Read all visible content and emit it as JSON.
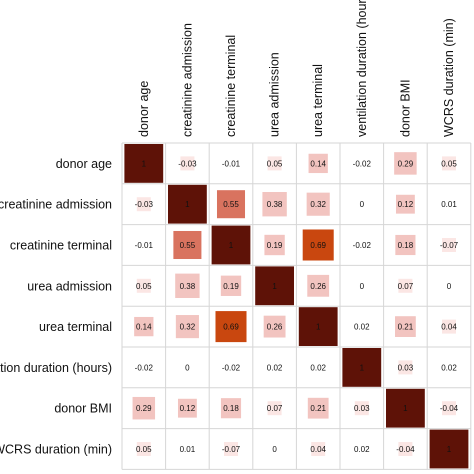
{
  "chart_data": {
    "type": "heatmap",
    "variables": [
      "donor age",
      "creatinine admission",
      "creatinine terminal",
      "urea admission",
      "urea terminal",
      "ventilation duration (hours)",
      "donor BMI",
      "WCRS duration (min)"
    ],
    "matrix": [
      [
        1,
        -0.03,
        -0.01,
        0.05,
        0.14,
        -0.02,
        0.29,
        0.05
      ],
      [
        -0.03,
        1,
        0.55,
        0.38,
        0.32,
        0,
        0.12,
        0.01
      ],
      [
        -0.01,
        0.55,
        1,
        0.19,
        0.69,
        -0.02,
        0.18,
        -0.07
      ],
      [
        0.05,
        0.38,
        0.19,
        1,
        0.26,
        0,
        0.07,
        0
      ],
      [
        0.14,
        0.32,
        0.69,
        0.26,
        1,
        0.02,
        0.21,
        0.04
      ],
      [
        -0.02,
        0,
        -0.02,
        0.02,
        0.02,
        1,
        0.03,
        0.02
      ],
      [
        0.29,
        0.12,
        0.18,
        0.07,
        0.21,
        0.03,
        1,
        -0.04
      ],
      [
        0.05,
        0.01,
        -0.07,
        0,
        0.04,
        0.02,
        -0.04,
        1
      ]
    ],
    "labels": [
      [
        "1",
        "-0.03",
        "-0.01",
        "0.05",
        "0.14",
        "-0.02",
        "0.29",
        "0.05"
      ],
      [
        "-0.03",
        "1",
        "0.55",
        "0.38",
        "0.32",
        "0",
        "0.12",
        "0.01"
      ],
      [
        "-0.01",
        "0.55",
        "1",
        "0.19",
        "0.69",
        "-0.02",
        "0.18",
        "-0.07"
      ],
      [
        "0.05",
        "0.38",
        "0.19",
        "1",
        "0.26",
        "0",
        "0.07",
        "0"
      ],
      [
        "0.14",
        "0.32",
        "0.69",
        "0.26",
        "1",
        "0.02",
        "0.21",
        "0.04"
      ],
      [
        "-0.02",
        "0",
        "-0.02",
        "0.02",
        "0.02",
        "1",
        "0.03",
        "0.02"
      ],
      [
        "0.29",
        "0.12",
        "0.18",
        "0.07",
        "0.21",
        "0.03",
        "1",
        "-0.04"
      ],
      [
        "0.05",
        "0.01",
        "-0.07",
        "0",
        "0.04",
        "0.02",
        "-0.04",
        "1"
      ]
    ],
    "title": "",
    "grid": true,
    "colors": {
      "diagonal": "#5e1207",
      "strong": "#c9470f",
      "moderate": "#d9735f",
      "weak": "#f2c4c0",
      "faint": "#fbe6e4",
      "grid_line": "#d6d6d6"
    }
  }
}
